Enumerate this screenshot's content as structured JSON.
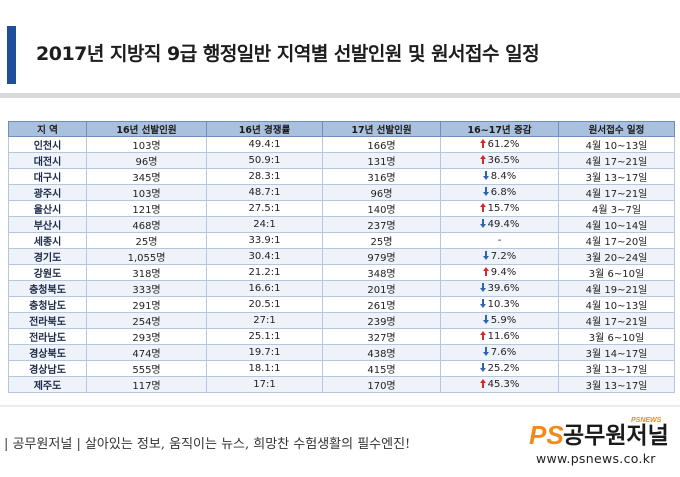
{
  "header": {
    "title": "2017년 지방직 9급 행정일반 지역별 선발인원 및 원서접수 일정"
  },
  "table": {
    "columns": [
      "지 역",
      "16년 선발인원",
      "16년 경쟁률",
      "17년 선발인원",
      "16~17년 증감",
      "원서접수 일정"
    ],
    "rows": [
      {
        "region": "인천시",
        "hire16": "103명",
        "ratio16": "49.4:1",
        "hire17": "166명",
        "trend": "up",
        "change": "61.2%",
        "schedule": "4월 10~13일"
      },
      {
        "region": "대전시",
        "hire16": "96명",
        "ratio16": "50.9:1",
        "hire17": "131명",
        "trend": "up",
        "change": "36.5%",
        "schedule": "4월 17~21일"
      },
      {
        "region": "대구시",
        "hire16": "345명",
        "ratio16": "28.3:1",
        "hire17": "316명",
        "trend": "down",
        "change": "8.4%",
        "schedule": "3월 13~17일"
      },
      {
        "region": "광주시",
        "hire16": "103명",
        "ratio16": "48.7:1",
        "hire17": "96명",
        "trend": "down",
        "change": "6.8%",
        "schedule": "4월 17~21일"
      },
      {
        "region": "울산시",
        "hire16": "121명",
        "ratio16": "27.5:1",
        "hire17": "140명",
        "trend": "up",
        "change": "15.7%",
        "schedule": "4월 3~7일"
      },
      {
        "region": "부산시",
        "hire16": "468명",
        "ratio16": "24:1",
        "hire17": "237명",
        "trend": "down",
        "change": "49.4%",
        "schedule": "4월 10~14일"
      },
      {
        "region": "세종시",
        "hire16": "25명",
        "ratio16": "33.9:1",
        "hire17": "25명",
        "trend": "none",
        "change": "-",
        "schedule": "4월 17~20일"
      },
      {
        "region": "경기도",
        "hire16": "1,055명",
        "ratio16": "30.4:1",
        "hire17": "979명",
        "trend": "down",
        "change": "7.2%",
        "schedule": "3월 20~24일"
      },
      {
        "region": "강원도",
        "hire16": "318명",
        "ratio16": "21.2:1",
        "hire17": "348명",
        "trend": "up",
        "change": "9.4%",
        "schedule": "3월 6~10일"
      },
      {
        "region": "충청북도",
        "hire16": "333명",
        "ratio16": "16.6:1",
        "hire17": "201명",
        "trend": "down",
        "change": "39.6%",
        "schedule": "4월 19~21일"
      },
      {
        "region": "충청남도",
        "hire16": "291명",
        "ratio16": "20.5:1",
        "hire17": "261명",
        "trend": "down",
        "change": "10.3%",
        "schedule": "4월 10~13일"
      },
      {
        "region": "전라북도",
        "hire16": "254명",
        "ratio16": "27:1",
        "hire17": "239명",
        "trend": "down",
        "change": "5.9%",
        "schedule": "4월 17~21일"
      },
      {
        "region": "전라남도",
        "hire16": "293명",
        "ratio16": "25.1:1",
        "hire17": "327명",
        "trend": "up",
        "change": "11.6%",
        "schedule": "3월 6~10일"
      },
      {
        "region": "경상북도",
        "hire16": "474명",
        "ratio16": "19.7:1",
        "hire17": "438명",
        "trend": "down",
        "change": "7.6%",
        "schedule": "3월 14~17일"
      },
      {
        "region": "경상남도",
        "hire16": "555명",
        "ratio16": "18.1:1",
        "hire17": "415명",
        "trend": "down",
        "change": "25.2%",
        "schedule": "3월 13~17일"
      },
      {
        "region": "제주도",
        "hire16": "117명",
        "ratio16": "17:1",
        "hire17": "170명",
        "trend": "up",
        "change": "45.3%",
        "schedule": "3월 13~17일"
      }
    ]
  },
  "footer": {
    "tagline": "| 공무원저널 | 살아있는 정보, 움직이는 뉴스, 희망찬 수험생활의 필수엔진!",
    "logo_text": "공무원저널",
    "logo_small": "PSNEWS",
    "logo_ps": "PS",
    "url": "www.psnews.co.kr"
  },
  "colors": {
    "accent": "#1f4e9a",
    "header_bg": "#a9c1de",
    "up": "#d22b2b",
    "down": "#2d64b3",
    "logo_orange": "#f08a1c"
  }
}
